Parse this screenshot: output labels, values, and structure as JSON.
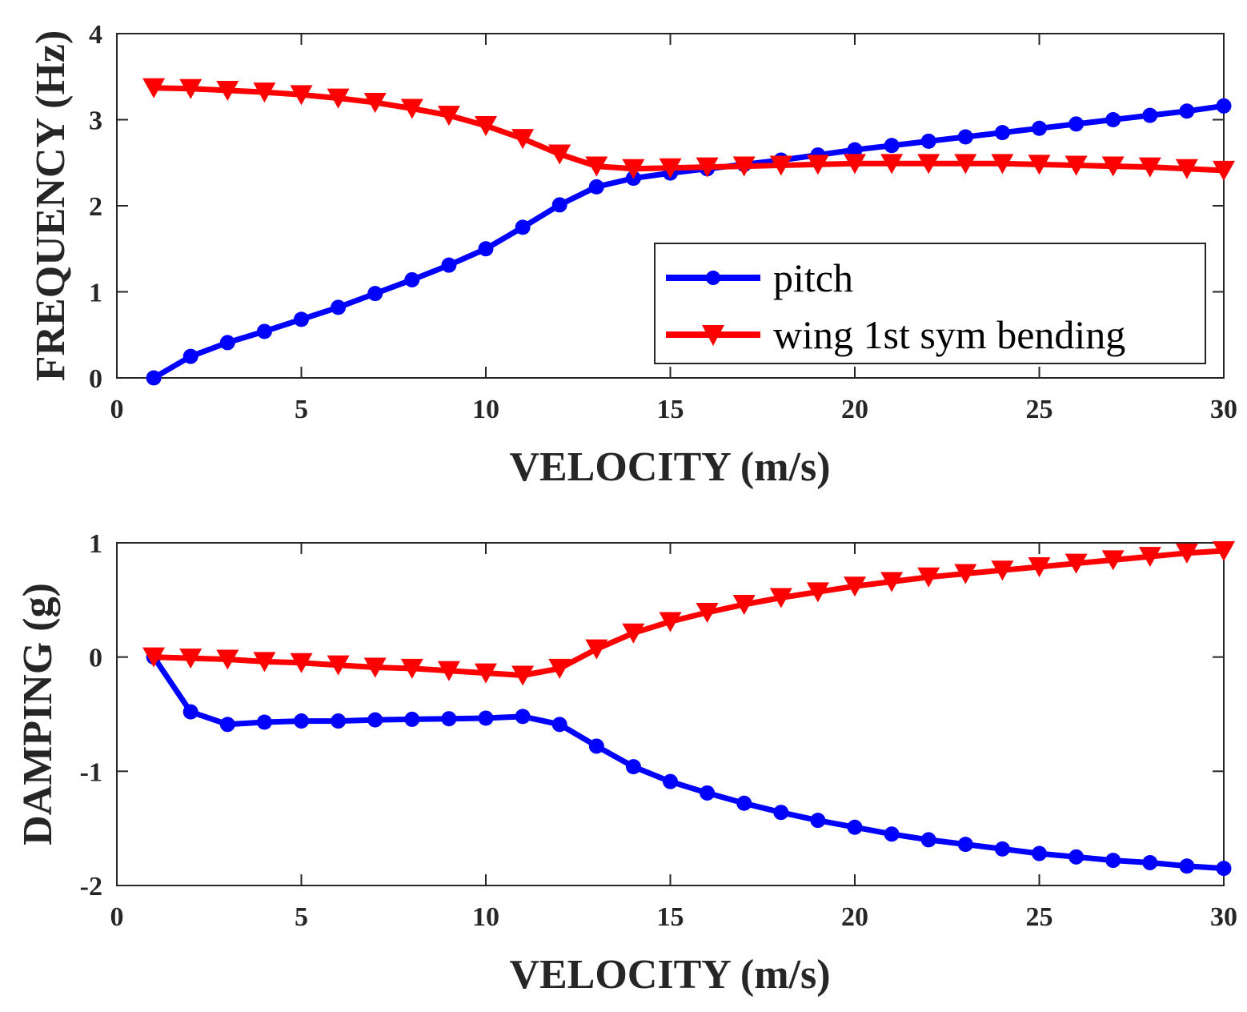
{
  "chart_data": [
    {
      "type": "line",
      "xlabel": "VELOCITY (m/s)",
      "ylabel": "FREQUENCY (Hz)",
      "xlim": [
        0,
        30
      ],
      "ylim": [
        0,
        4
      ],
      "xticks": [
        "0",
        "5",
        "10",
        "15",
        "20",
        "25",
        "30"
      ],
      "yticks": [
        "0",
        "1",
        "2",
        "3",
        "4"
      ],
      "grid": false,
      "legend": "bottom-right",
      "x": [
        1,
        2,
        3,
        4,
        5,
        6,
        7,
        8,
        9,
        10,
        11,
        12,
        13,
        14,
        15,
        16,
        17,
        18,
        19,
        20,
        21,
        22,
        23,
        24,
        25,
        26,
        27,
        28,
        29,
        30
      ],
      "series": [
        {
          "name": "pitch",
          "color": "#0000ff",
          "marker": "circle",
          "values": [
            0.0,
            0.25,
            0.41,
            0.54,
            0.68,
            0.82,
            0.98,
            1.14,
            1.31,
            1.5,
            1.75,
            2.01,
            2.22,
            2.32,
            2.38,
            2.43,
            2.48,
            2.53,
            2.59,
            2.65,
            2.7,
            2.75,
            2.8,
            2.85,
            2.9,
            2.95,
            3.0,
            3.05,
            3.1,
            3.16
          ]
        },
        {
          "name": "wing 1st sym bending",
          "color": "#ff0000",
          "marker": "triangle-down",
          "values": [
            3.37,
            3.36,
            3.34,
            3.32,
            3.29,
            3.25,
            3.2,
            3.13,
            3.05,
            2.93,
            2.78,
            2.6,
            2.46,
            2.43,
            2.44,
            2.45,
            2.46,
            2.47,
            2.48,
            2.49,
            2.49,
            2.49,
            2.49,
            2.49,
            2.48,
            2.47,
            2.46,
            2.45,
            2.43,
            2.41
          ]
        }
      ]
    },
    {
      "type": "line",
      "xlabel": "VELOCITY (m/s)",
      "ylabel": "DAMPING (g)",
      "xlim": [
        0,
        30
      ],
      "ylim": [
        -2,
        1
      ],
      "xticks": [
        "0",
        "5",
        "10",
        "15",
        "20",
        "25",
        "30"
      ],
      "yticks": [
        "-2",
        "-1",
        "0",
        "1"
      ],
      "grid": false,
      "x": [
        1,
        2,
        3,
        4,
        5,
        6,
        7,
        8,
        9,
        10,
        11,
        12,
        13,
        14,
        15,
        16,
        17,
        18,
        19,
        20,
        21,
        22,
        23,
        24,
        25,
        26,
        27,
        28,
        29,
        30
      ],
      "series": [
        {
          "color": "#0000ff",
          "marker": "circle",
          "values": [
            0.0,
            -0.48,
            -0.59,
            -0.57,
            -0.56,
            -0.56,
            -0.55,
            -0.545,
            -0.54,
            -0.535,
            -0.52,
            -0.59,
            -0.78,
            -0.96,
            -1.09,
            -1.19,
            -1.28,
            -1.36,
            -1.43,
            -1.49,
            -1.55,
            -1.6,
            -1.64,
            -1.68,
            -1.72,
            -1.75,
            -1.78,
            -1.8,
            -1.83,
            -1.85
          ]
        },
        {
          "color": "#ff0000",
          "marker": "triangle-down",
          "values": [
            0.0,
            -0.01,
            -0.02,
            -0.04,
            -0.05,
            -0.07,
            -0.09,
            -0.1,
            -0.12,
            -0.14,
            -0.16,
            -0.1,
            0.07,
            0.21,
            0.31,
            0.39,
            0.46,
            0.52,
            0.57,
            0.62,
            0.66,
            0.7,
            0.73,
            0.76,
            0.79,
            0.82,
            0.85,
            0.88,
            0.91,
            0.93
          ]
        }
      ]
    }
  ]
}
